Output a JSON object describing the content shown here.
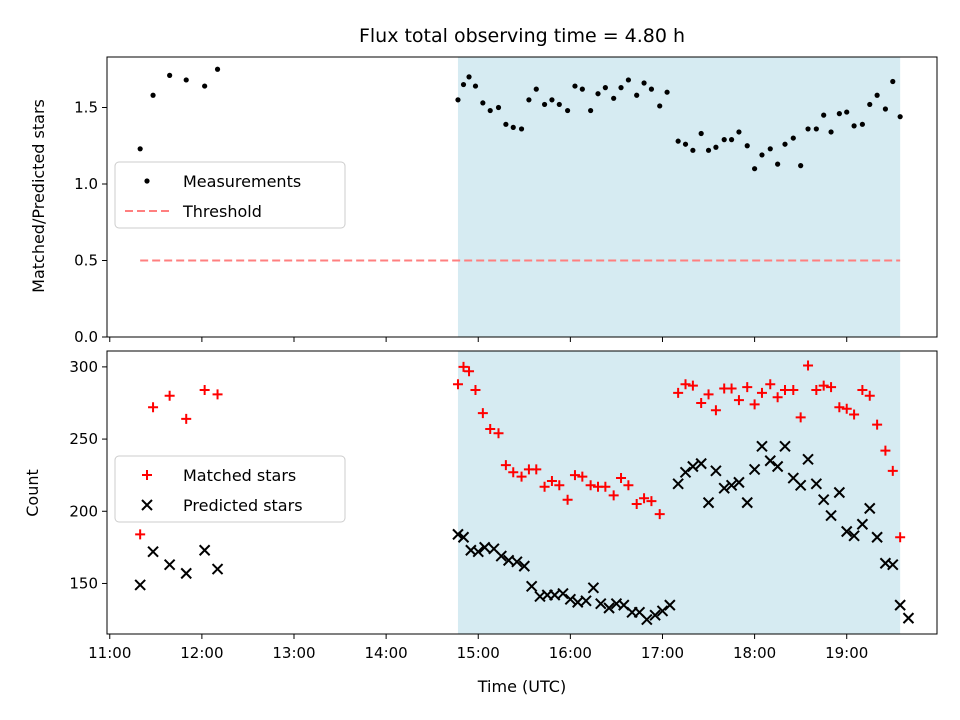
{
  "chart_data": {
    "title": "Flux total observing time = 4.80 h",
    "xlabel": "Time (UTC)",
    "x_unit": "hours UTC",
    "x_ticks": [
      {
        "v": 11,
        "label": "11:00"
      },
      {
        "v": 12,
        "label": "12:00"
      },
      {
        "v": 13,
        "label": "13:00"
      },
      {
        "v": 14,
        "label": "14:00"
      },
      {
        "v": 15,
        "label": "15:00"
      },
      {
        "v": 16,
        "label": "16:00"
      },
      {
        "v": 17,
        "label": "17:00"
      },
      {
        "v": 18,
        "label": "18:00"
      },
      {
        "v": 19,
        "label": "19:00"
      }
    ],
    "xlim": [
      10.97,
      19.98
    ],
    "observing_window": {
      "start": 14.78,
      "end": 19.58,
      "color": "#add8e6"
    },
    "panels": [
      {
        "id": "ratio",
        "type": "scatter",
        "ylabel": "Matched/Predicted stars",
        "ylim": [
          0,
          1.83
        ],
        "y_ticks": [
          {
            "v": 0,
            "label": "0.0"
          },
          {
            "v": 0.5,
            "label": "0.5"
          },
          {
            "v": 1.0,
            "label": "1.0"
          },
          {
            "v": 1.5,
            "label": "1.5"
          }
        ],
        "legend": {
          "position": "center-left",
          "entries": [
            "Measurements",
            "Threshold"
          ]
        },
        "series": [
          {
            "name": "Measurements",
            "marker": "dot",
            "color": "#000000",
            "points": [
              [
                11.33,
                1.23
              ],
              [
                11.47,
                1.58
              ],
              [
                11.65,
                1.71
              ],
              [
                11.83,
                1.68
              ],
              [
                12.03,
                1.64
              ],
              [
                12.17,
                1.75
              ],
              [
                14.78,
                1.55
              ],
              [
                14.84,
                1.65
              ],
              [
                14.9,
                1.7
              ],
              [
                14.97,
                1.64
              ],
              [
                15.05,
                1.53
              ],
              [
                15.13,
                1.48
              ],
              [
                15.22,
                1.5
              ],
              [
                15.3,
                1.39
              ],
              [
                15.38,
                1.37
              ],
              [
                15.47,
                1.36
              ],
              [
                15.55,
                1.55
              ],
              [
                15.63,
                1.62
              ],
              [
                15.72,
                1.52
              ],
              [
                15.8,
                1.55
              ],
              [
                15.88,
                1.52
              ],
              [
                15.97,
                1.48
              ],
              [
                16.05,
                1.64
              ],
              [
                16.13,
                1.62
              ],
              [
                16.22,
                1.48
              ],
              [
                16.3,
                1.59
              ],
              [
                16.38,
                1.63
              ],
              [
                16.47,
                1.56
              ],
              [
                16.55,
                1.63
              ],
              [
                16.63,
                1.68
              ],
              [
                16.72,
                1.58
              ],
              [
                16.8,
                1.66
              ],
              [
                16.88,
                1.62
              ],
              [
                16.97,
                1.51
              ],
              [
                17.05,
                1.6
              ],
              [
                17.17,
                1.28
              ],
              [
                17.25,
                1.26
              ],
              [
                17.33,
                1.22
              ],
              [
                17.42,
                1.33
              ],
              [
                17.5,
                1.22
              ],
              [
                17.58,
                1.24
              ],
              [
                17.67,
                1.29
              ],
              [
                17.75,
                1.29
              ],
              [
                17.83,
                1.34
              ],
              [
                17.92,
                1.25
              ],
              [
                18.0,
                1.1
              ],
              [
                18.08,
                1.19
              ],
              [
                18.17,
                1.23
              ],
              [
                18.25,
                1.13
              ],
              [
                18.33,
                1.26
              ],
              [
                18.42,
                1.3
              ],
              [
                18.5,
                1.12
              ],
              [
                18.58,
                1.36
              ],
              [
                18.67,
                1.36
              ],
              [
                18.75,
                1.45
              ],
              [
                18.83,
                1.34
              ],
              [
                18.92,
                1.46
              ],
              [
                19.0,
                1.47
              ],
              [
                19.08,
                1.38
              ],
              [
                19.17,
                1.39
              ],
              [
                19.25,
                1.52
              ],
              [
                19.33,
                1.58
              ],
              [
                19.42,
                1.49
              ],
              [
                19.5,
                1.67
              ],
              [
                19.58,
                1.44
              ]
            ]
          },
          {
            "name": "Threshold",
            "marker": "dashed-line",
            "color": "#ff7f7f",
            "points": [
              [
                11.33,
                0.5
              ],
              [
                19.58,
                0.5
              ]
            ]
          }
        ]
      },
      {
        "id": "count",
        "type": "scatter",
        "ylabel": "Count",
        "ylim": [
          115,
          311
        ],
        "y_ticks": [
          {
            "v": 150,
            "label": "150"
          },
          {
            "v": 200,
            "label": "200"
          },
          {
            "v": 250,
            "label": "250"
          },
          {
            "v": 300,
            "label": "300"
          }
        ],
        "legend": {
          "position": "center-left",
          "entries": [
            "Matched stars",
            "Predicted stars"
          ]
        },
        "series": [
          {
            "name": "Matched stars",
            "marker": "plus",
            "color": "#ff0000",
            "points": [
              [
                11.33,
                184
              ],
              [
                11.47,
                272
              ],
              [
                11.65,
                280
              ],
              [
                11.83,
                264
              ],
              [
                12.03,
                284
              ],
              [
                12.17,
                281
              ],
              [
                14.78,
                288
              ],
              [
                14.84,
                300
              ],
              [
                14.9,
                297
              ],
              [
                14.97,
                284
              ],
              [
                15.05,
                268
              ],
              [
                15.13,
                257
              ],
              [
                15.22,
                254
              ],
              [
                15.3,
                232
              ],
              [
                15.38,
                227
              ],
              [
                15.47,
                224
              ],
              [
                15.55,
                229
              ],
              [
                15.63,
                229
              ],
              [
                15.72,
                217
              ],
              [
                15.8,
                221
              ],
              [
                15.88,
                218
              ],
              [
                15.97,
                208
              ],
              [
                16.05,
                225
              ],
              [
                16.13,
                224
              ],
              [
                16.22,
                218
              ],
              [
                16.3,
                217
              ],
              [
                16.38,
                217
              ],
              [
                16.47,
                211
              ],
              [
                16.55,
                223
              ],
              [
                16.63,
                218
              ],
              [
                16.72,
                205
              ],
              [
                16.8,
                209
              ],
              [
                16.88,
                207
              ],
              [
                16.97,
                198
              ],
              [
                17.17,
                282
              ],
              [
                17.25,
                288
              ],
              [
                17.33,
                287
              ],
              [
                17.42,
                275
              ],
              [
                17.5,
                281
              ],
              [
                17.58,
                270
              ],
              [
                17.67,
                285
              ],
              [
                17.75,
                285
              ],
              [
                17.83,
                277
              ],
              [
                17.92,
                286
              ],
              [
                18.0,
                274
              ],
              [
                18.08,
                282
              ],
              [
                18.17,
                288
              ],
              [
                18.25,
                279
              ],
              [
                18.33,
                284
              ],
              [
                18.42,
                284
              ],
              [
                18.5,
                265
              ],
              [
                18.58,
                301
              ],
              [
                18.67,
                284
              ],
              [
                18.75,
                287
              ],
              [
                18.83,
                286
              ],
              [
                18.92,
                272
              ],
              [
                19.0,
                271
              ],
              [
                19.08,
                267
              ],
              [
                19.17,
                284
              ],
              [
                19.25,
                280
              ],
              [
                19.33,
                260
              ],
              [
                19.42,
                242
              ],
              [
                19.5,
                228
              ],
              [
                19.58,
                182
              ]
            ]
          },
          {
            "name": "Predicted stars",
            "marker": "x",
            "color": "#000000",
            "points": [
              [
                11.33,
                149
              ],
              [
                11.47,
                172
              ],
              [
                11.65,
                163
              ],
              [
                11.83,
                157
              ],
              [
                12.03,
                173
              ],
              [
                12.17,
                160
              ],
              [
                14.78,
                184
              ],
              [
                14.84,
                182
              ],
              [
                14.92,
                173
              ],
              [
                15.0,
                172
              ],
              [
                15.07,
                175
              ],
              [
                15.17,
                174
              ],
              [
                15.25,
                169
              ],
              [
                15.33,
                166
              ],
              [
                15.42,
                165
              ],
              [
                15.5,
                162
              ],
              [
                15.58,
                148
              ],
              [
                15.67,
                141
              ],
              [
                15.75,
                142
              ],
              [
                15.83,
                142
              ],
              [
                15.92,
                143
              ],
              [
                16.0,
                139
              ],
              [
                16.08,
                137
              ],
              [
                16.17,
                138
              ],
              [
                16.25,
                147
              ],
              [
                16.33,
                136
              ],
              [
                16.42,
                133
              ],
              [
                16.5,
                136
              ],
              [
                16.58,
                135
              ],
              [
                16.67,
                130
              ],
              [
                16.75,
                130
              ],
              [
                16.83,
                125
              ],
              [
                16.92,
                128
              ],
              [
                17.0,
                131
              ],
              [
                17.08,
                135
              ],
              [
                17.17,
                219
              ],
              [
                17.25,
                227
              ],
              [
                17.33,
                231
              ],
              [
                17.42,
                233
              ],
              [
                17.5,
                206
              ],
              [
                17.58,
                228
              ],
              [
                17.67,
                216
              ],
              [
                17.75,
                218
              ],
              [
                17.83,
                220
              ],
              [
                17.92,
                206
              ],
              [
                18.0,
                229
              ],
              [
                18.08,
                245
              ],
              [
                18.17,
                235
              ],
              [
                18.25,
                231
              ],
              [
                18.33,
                245
              ],
              [
                18.42,
                223
              ],
              [
                18.5,
                218
              ],
              [
                18.58,
                236
              ],
              [
                18.67,
                219
              ],
              [
                18.75,
                208
              ],
              [
                18.83,
                197
              ],
              [
                18.92,
                213
              ],
              [
                19.0,
                186
              ],
              [
                19.08,
                183
              ],
              [
                19.17,
                191
              ],
              [
                19.25,
                202
              ],
              [
                19.33,
                182
              ],
              [
                19.42,
                164
              ],
              [
                19.5,
                163
              ],
              [
                19.58,
                135
              ],
              [
                19.67,
                126
              ]
            ]
          }
        ]
      }
    ]
  }
}
